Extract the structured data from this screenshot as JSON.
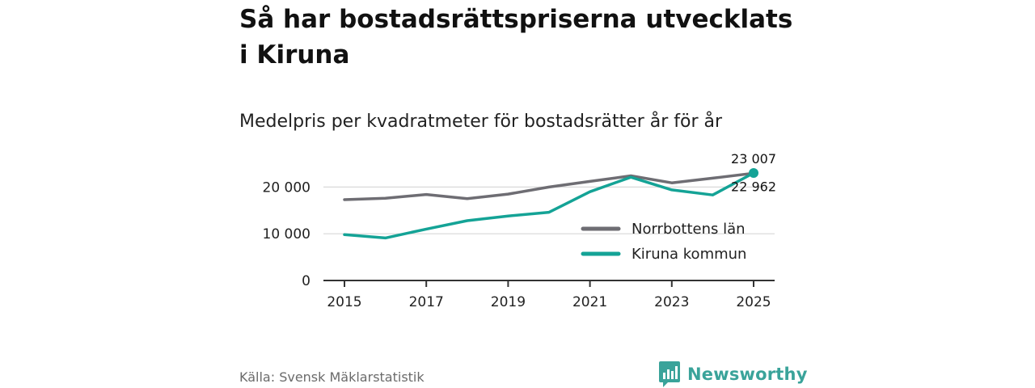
{
  "title": "Så har bostadsrättspriserna utvecklats i Kiruna",
  "subtitle": "Medelpris per kvadratmeter för bostadsrätter år för år",
  "source": "Källa: Svensk Mäklarstatistik",
  "brand": {
    "name": "Newsworthy",
    "color": "#3aa39a",
    "icon": "bar-chart-badge-icon"
  },
  "chart_data": {
    "type": "line",
    "x": [
      2015,
      2016,
      2017,
      2018,
      2019,
      2020,
      2021,
      2022,
      2023,
      2024,
      2025
    ],
    "x_ticks": [
      "2015",
      "2017",
      "2019",
      "2021",
      "2023",
      "2025"
    ],
    "y_ticks": [
      {
        "value": 0,
        "label": "0"
      },
      {
        "value": 10000,
        "label": "10 000"
      },
      {
        "value": 20000,
        "label": "20 000"
      }
    ],
    "ylim": [
      0,
      23007
    ],
    "grid": "horizontal",
    "legend_position": "bottom-right",
    "series": [
      {
        "name": "Norrbottens län",
        "color": "#6e6d73",
        "values": [
          17300,
          17600,
          18400,
          17500,
          18500,
          20000,
          21200,
          22400,
          20900,
          21900,
          22962
        ]
      },
      {
        "name": "Kiruna kommun",
        "color": "#14a396",
        "values": [
          9800,
          9100,
          11000,
          12800,
          13800,
          14600,
          19000,
          22100,
          19400,
          18300,
          23007
        ]
      }
    ],
    "annotations": [
      {
        "series": "Kiruna kommun",
        "x": 2025,
        "label": "23 007",
        "placement": "above"
      },
      {
        "series": "Norrbottens län",
        "x": 2025,
        "label": "22 962",
        "placement": "below"
      }
    ]
  }
}
